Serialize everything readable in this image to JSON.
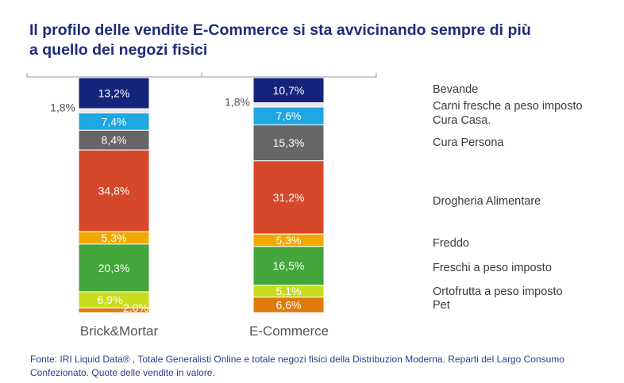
{
  "title_lines": [
    "Il profilo delle vendite E-Commerce si sta avvicinando sempre di più",
    "a quello dei negozi fisici"
  ],
  "footnote": "Fonte: IRI Liquid Data® , Totale Generalisti Online e totale negozi fisici della Distribuzion Moderna. Reparti del Largo Consumo Confezionato. Quote delle vendite in valore.",
  "chart_data": {
    "type": "bar",
    "stacked": true,
    "categories": [
      "Brick&Mortar",
      "E-Commerce"
    ],
    "series": [
      {
        "name": "Bevande",
        "values": [
          13.2,
          10.7
        ],
        "labels": [
          "13,2%",
          "10,7%"
        ],
        "color": "#14247a"
      },
      {
        "name": "Carni fresche a peso imposto",
        "values": [
          1.8,
          1.8
        ],
        "labels": [
          "1,8%",
          "1,8%"
        ],
        "color": "#e8e8e8"
      },
      {
        "name": "Cura Casa.",
        "values": [
          7.4,
          7.6
        ],
        "labels": [
          "7,4%",
          "7,6%"
        ],
        "color": "#1ea7e1"
      },
      {
        "name": "Cura Persona",
        "values": [
          8.4,
          15.3
        ],
        "labels": [
          "8,4%",
          "15,3%"
        ],
        "color": "#666666"
      },
      {
        "name": "Drogheria Alimentare",
        "values": [
          34.8,
          31.2
        ],
        "labels": [
          "34,8%",
          "31,2%"
        ],
        "color": "#d6482a"
      },
      {
        "name": "Freddo",
        "values": [
          5.3,
          5.3
        ],
        "labels": [
          "5,3%",
          "5,3%"
        ],
        "color": "#f1a800"
      },
      {
        "name": "Freschi a peso imposto",
        "values": [
          20.3,
          16.5
        ],
        "labels": [
          "20,3%",
          "16,5%"
        ],
        "color": "#43a53a"
      },
      {
        "name": "Ortofrutta a peso imposto",
        "values": [
          6.9,
          5.1
        ],
        "labels": [
          "6,9%",
          "5,1%"
        ],
        "color": "#c8dc1e"
      },
      {
        "name": "Pet",
        "values": [
          2.0,
          6.6
        ],
        "labels": [
          "2,0%",
          "6,6%"
        ],
        "color": "#de7b0c"
      }
    ],
    "ylim": [
      0,
      100
    ],
    "grid": false,
    "legend_position": "right"
  }
}
